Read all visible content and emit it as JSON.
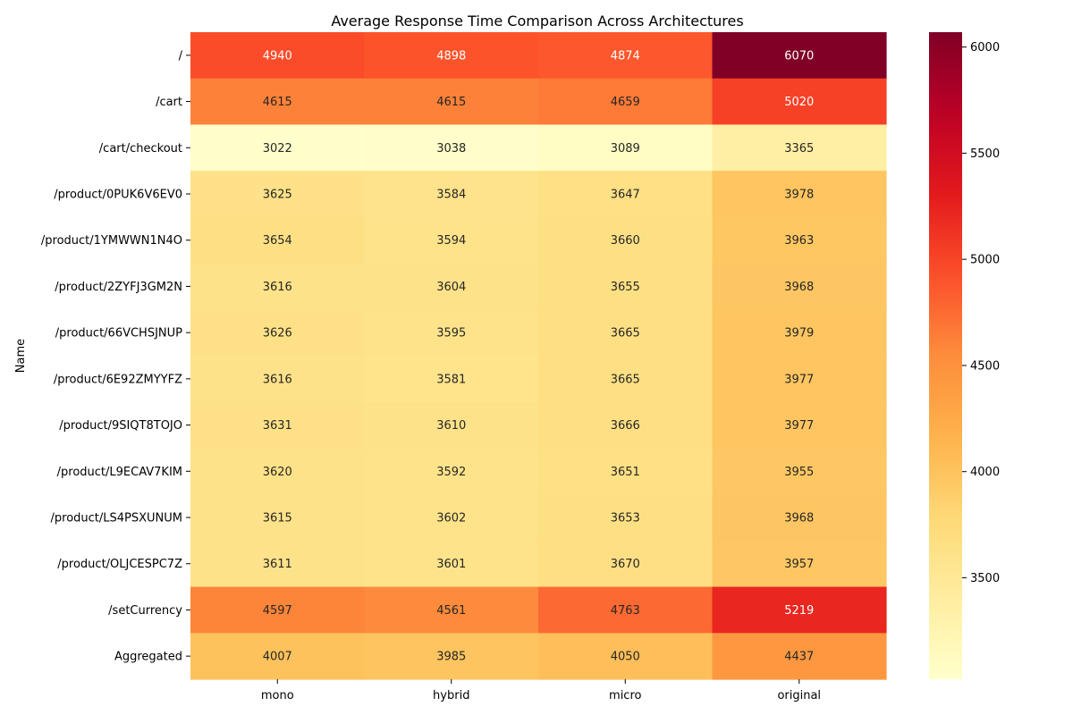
{
  "chart_data": {
    "type": "heatmap",
    "title": "Average Response Time Comparison Across Architectures",
    "ylabel": "Name",
    "xlabel": "",
    "x_categories": [
      "mono",
      "hybrid",
      "micro",
      "original"
    ],
    "y_categories": [
      "/",
      "/cart",
      "/cart/checkout",
      "/product/0PUK6V6EV0",
      "/product/1YMWWN1N4O",
      "/product/2ZYFJ3GM2N",
      "/product/66VCHSJNUP",
      "/product/6E92ZMYYFZ",
      "/product/9SIQT8TOJO",
      "/product/L9ECAV7KIM",
      "/product/LS4PSXUNUM",
      "/product/OLJCESPC7Z",
      "/setCurrency",
      "Aggregated"
    ],
    "values": [
      [
        4940,
        4898,
        4874,
        6070
      ],
      [
        4615,
        4615,
        4659,
        5020
      ],
      [
        3022,
        3038,
        3089,
        3365
      ],
      [
        3625,
        3584,
        3647,
        3978
      ],
      [
        3654,
        3594,
        3660,
        3963
      ],
      [
        3616,
        3604,
        3655,
        3968
      ],
      [
        3626,
        3595,
        3665,
        3979
      ],
      [
        3616,
        3581,
        3665,
        3977
      ],
      [
        3631,
        3610,
        3666,
        3977
      ],
      [
        3620,
        3592,
        3651,
        3955
      ],
      [
        3615,
        3602,
        3653,
        3968
      ],
      [
        3611,
        3601,
        3670,
        3957
      ],
      [
        4597,
        4561,
        4763,
        5219
      ],
      [
        4007,
        3985,
        4050,
        4437
      ]
    ],
    "colorscale": "YlOrRd",
    "colorbar_range": [
      3022,
      6070
    ],
    "colorbar_ticks": [
      3500,
      4000,
      4500,
      5000,
      5500,
      6000
    ],
    "annotations": true,
    "grid": false
  }
}
